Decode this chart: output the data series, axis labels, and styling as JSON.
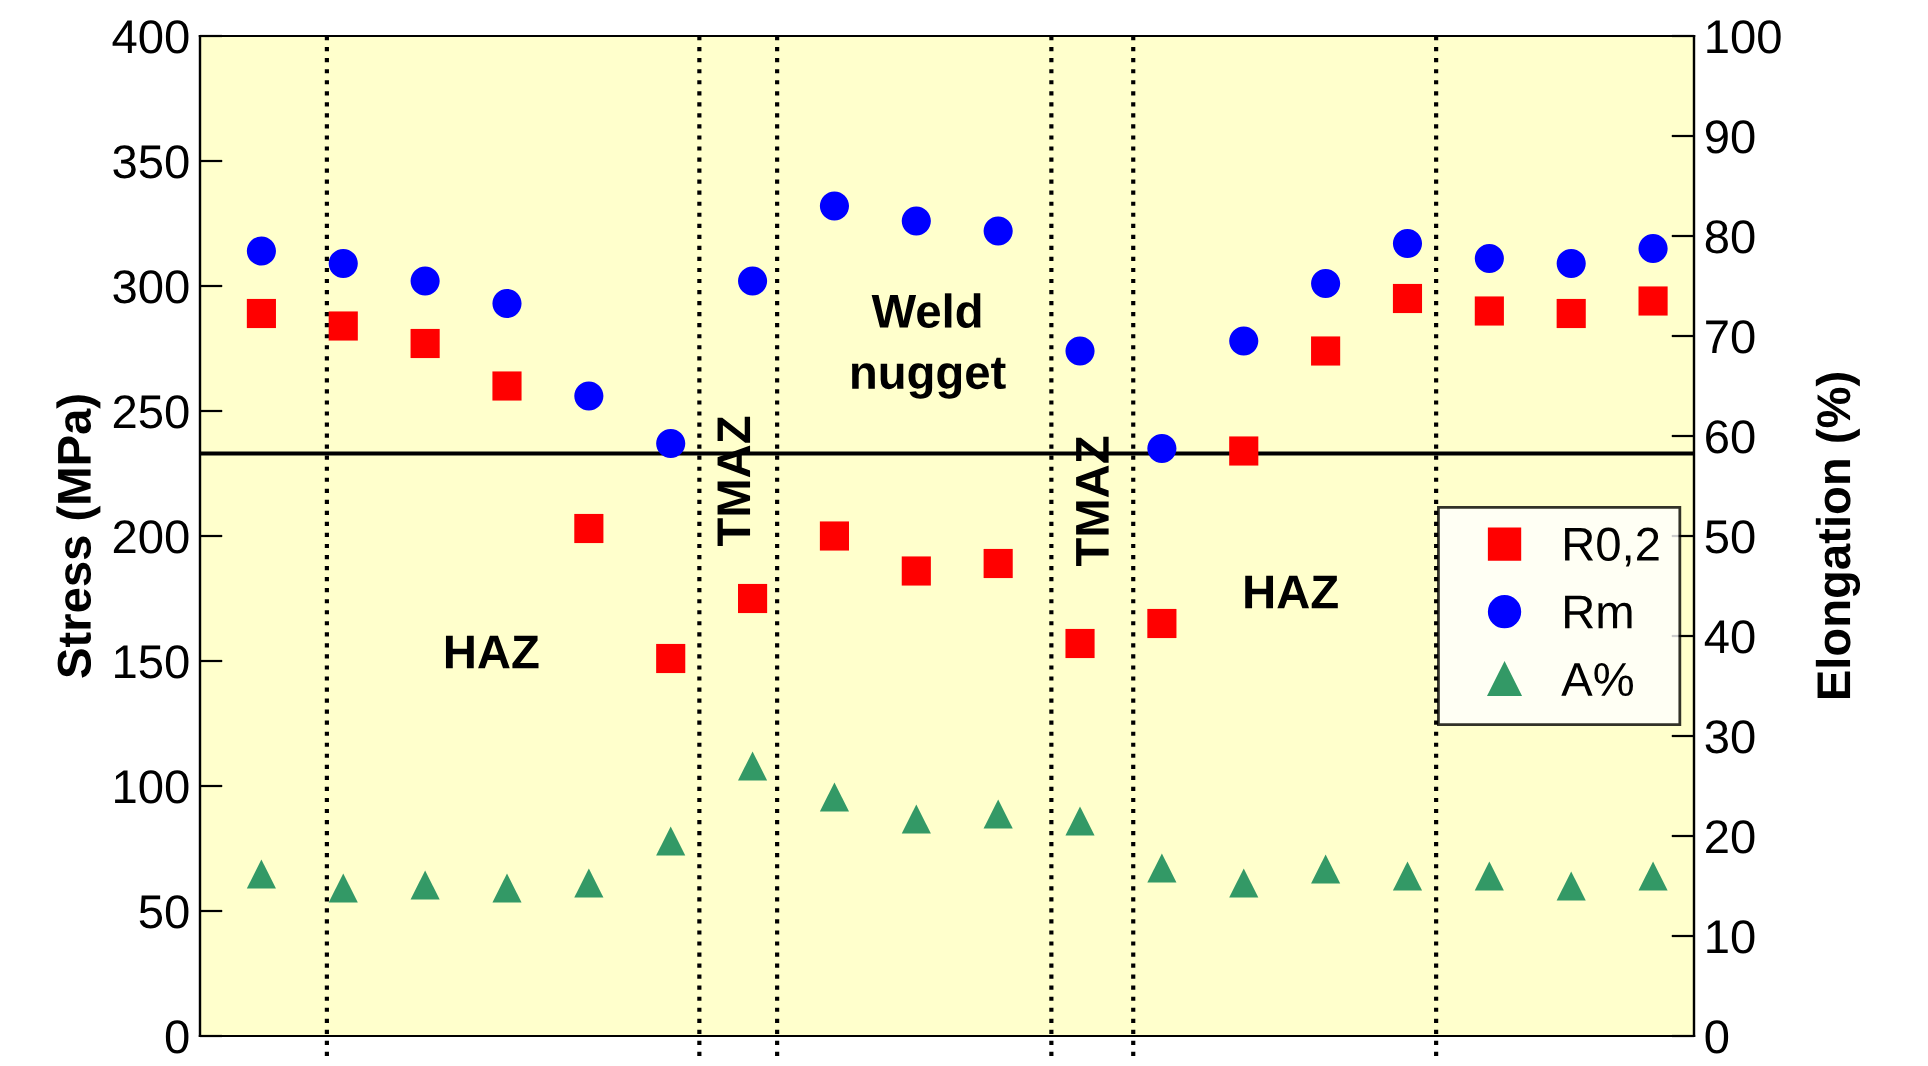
{
  "chart_data": {
    "type": "scatter",
    "ylabel": "Stress (MPa)",
    "y2label": "Elongation (%)",
    "categories": [
      null,
      null,
      null,
      null,
      null,
      null,
      null,
      null,
      null,
      null,
      null,
      null,
      null,
      null,
      null,
      null,
      null,
      null
    ],
    "ylim": [
      0,
      400
    ],
    "yticks": [
      0,
      50,
      100,
      150,
      200,
      250,
      300,
      350,
      400
    ],
    "y2lim": [
      0,
      100
    ],
    "y2ticks": [
      0,
      10,
      20,
      30,
      40,
      50,
      60,
      70,
      80,
      90,
      100
    ],
    "series": [
      {
        "name": "R0,2",
        "color": "#ff0000",
        "marker": "square",
        "values": [
          289,
          284,
          277,
          260,
          203,
          151,
          175,
          200,
          186,
          189,
          157,
          165,
          234,
          274,
          295,
          290,
          289,
          294
        ]
      },
      {
        "name": "Rm",
        "color": "#0000ff",
        "marker": "circle",
        "values": [
          314,
          309,
          302,
          293,
          256,
          237,
          302,
          332,
          326,
          322,
          274,
          235,
          278,
          301,
          317,
          311,
          309,
          315
        ]
      },
      {
        "name": "A%",
        "color": "#339966",
        "marker": "triangle",
        "axis": "y2",
        "values": [
          16.2,
          14.8,
          15.1,
          14.8,
          15.3,
          19.5,
          27,
          23.9,
          21.7,
          22.2,
          21.5,
          16.8,
          15.3,
          16.7,
          16,
          16,
          15,
          16
        ]
      }
    ],
    "ref_lines": [
      {
        "axis": "y",
        "value": 233,
        "color": "#000000",
        "line_style": "solid"
      }
    ],
    "annotations": [
      "HAZ",
      "TMAZ",
      "Weld\nnugget",
      "TMAZ",
      "HAZ"
    ],
    "legend": "right",
    "grid": false
  }
}
